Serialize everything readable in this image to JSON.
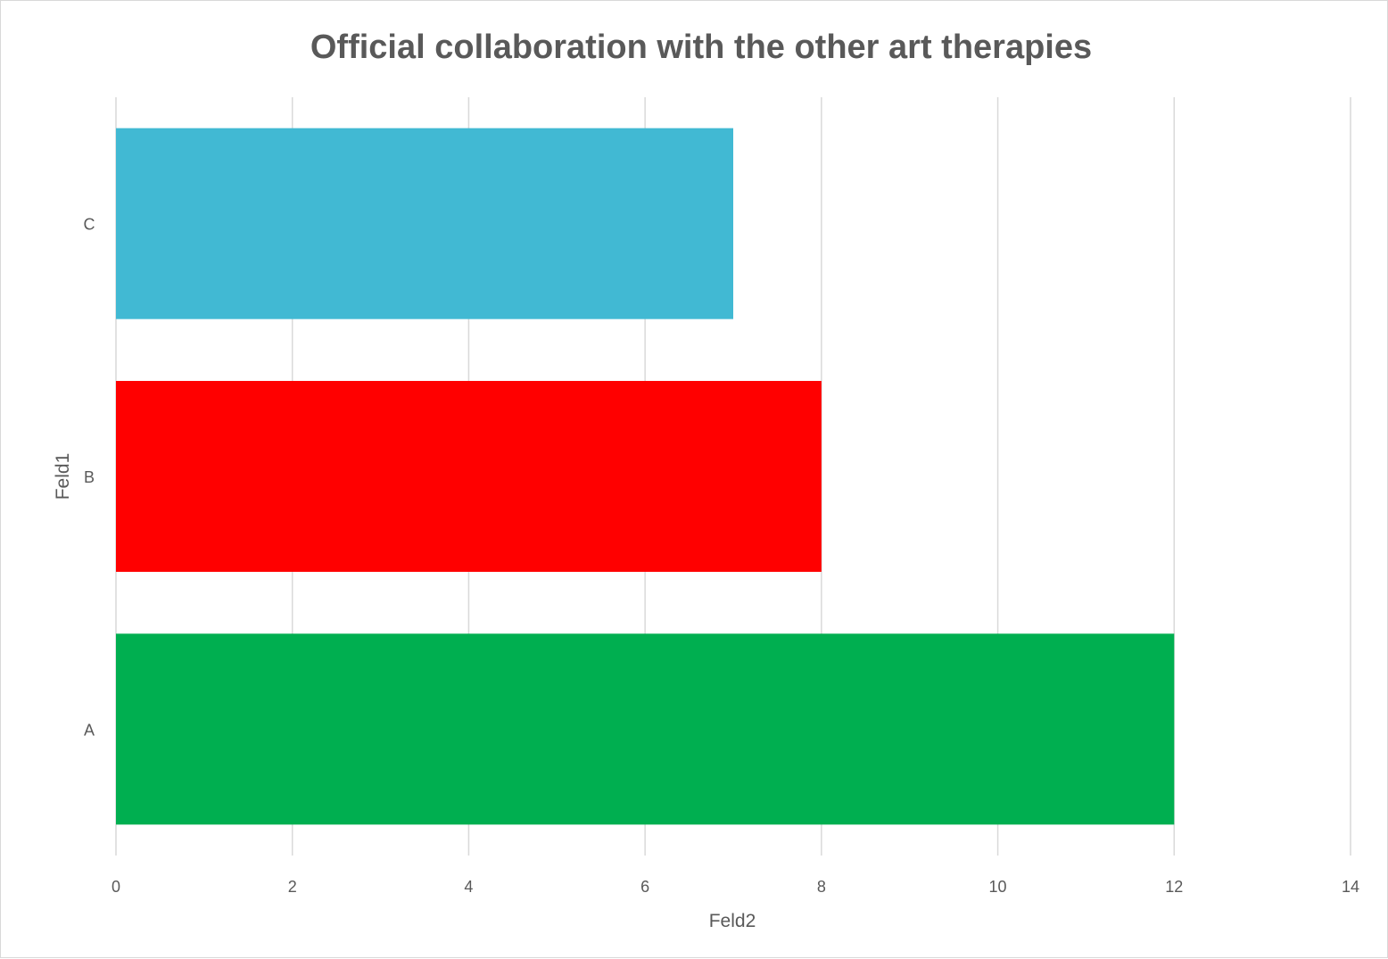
{
  "chart_data": {
    "type": "bar",
    "orientation": "horizontal",
    "title": "Official collaboration with the other art therapies",
    "xlabel": "Feld2",
    "ylabel": "Feld1",
    "categories": [
      "A",
      "B",
      "C"
    ],
    "values": [
      12,
      8,
      7
    ],
    "bar_colors": [
      "#00AF50",
      "#FF0000",
      "#41B9D3"
    ],
    "xlim": [
      0,
      14
    ],
    "xticks": [
      0,
      2,
      4,
      6,
      8,
      10,
      12,
      14
    ],
    "xtick_labels": [
      "0",
      "2",
      "4",
      "6",
      "8",
      "10",
      "12",
      "14"
    ],
    "grid": true,
    "legend": "none"
  },
  "colors": {
    "text": "#595959",
    "grid": "#d9d9d9",
    "background": "#ffffff"
  }
}
